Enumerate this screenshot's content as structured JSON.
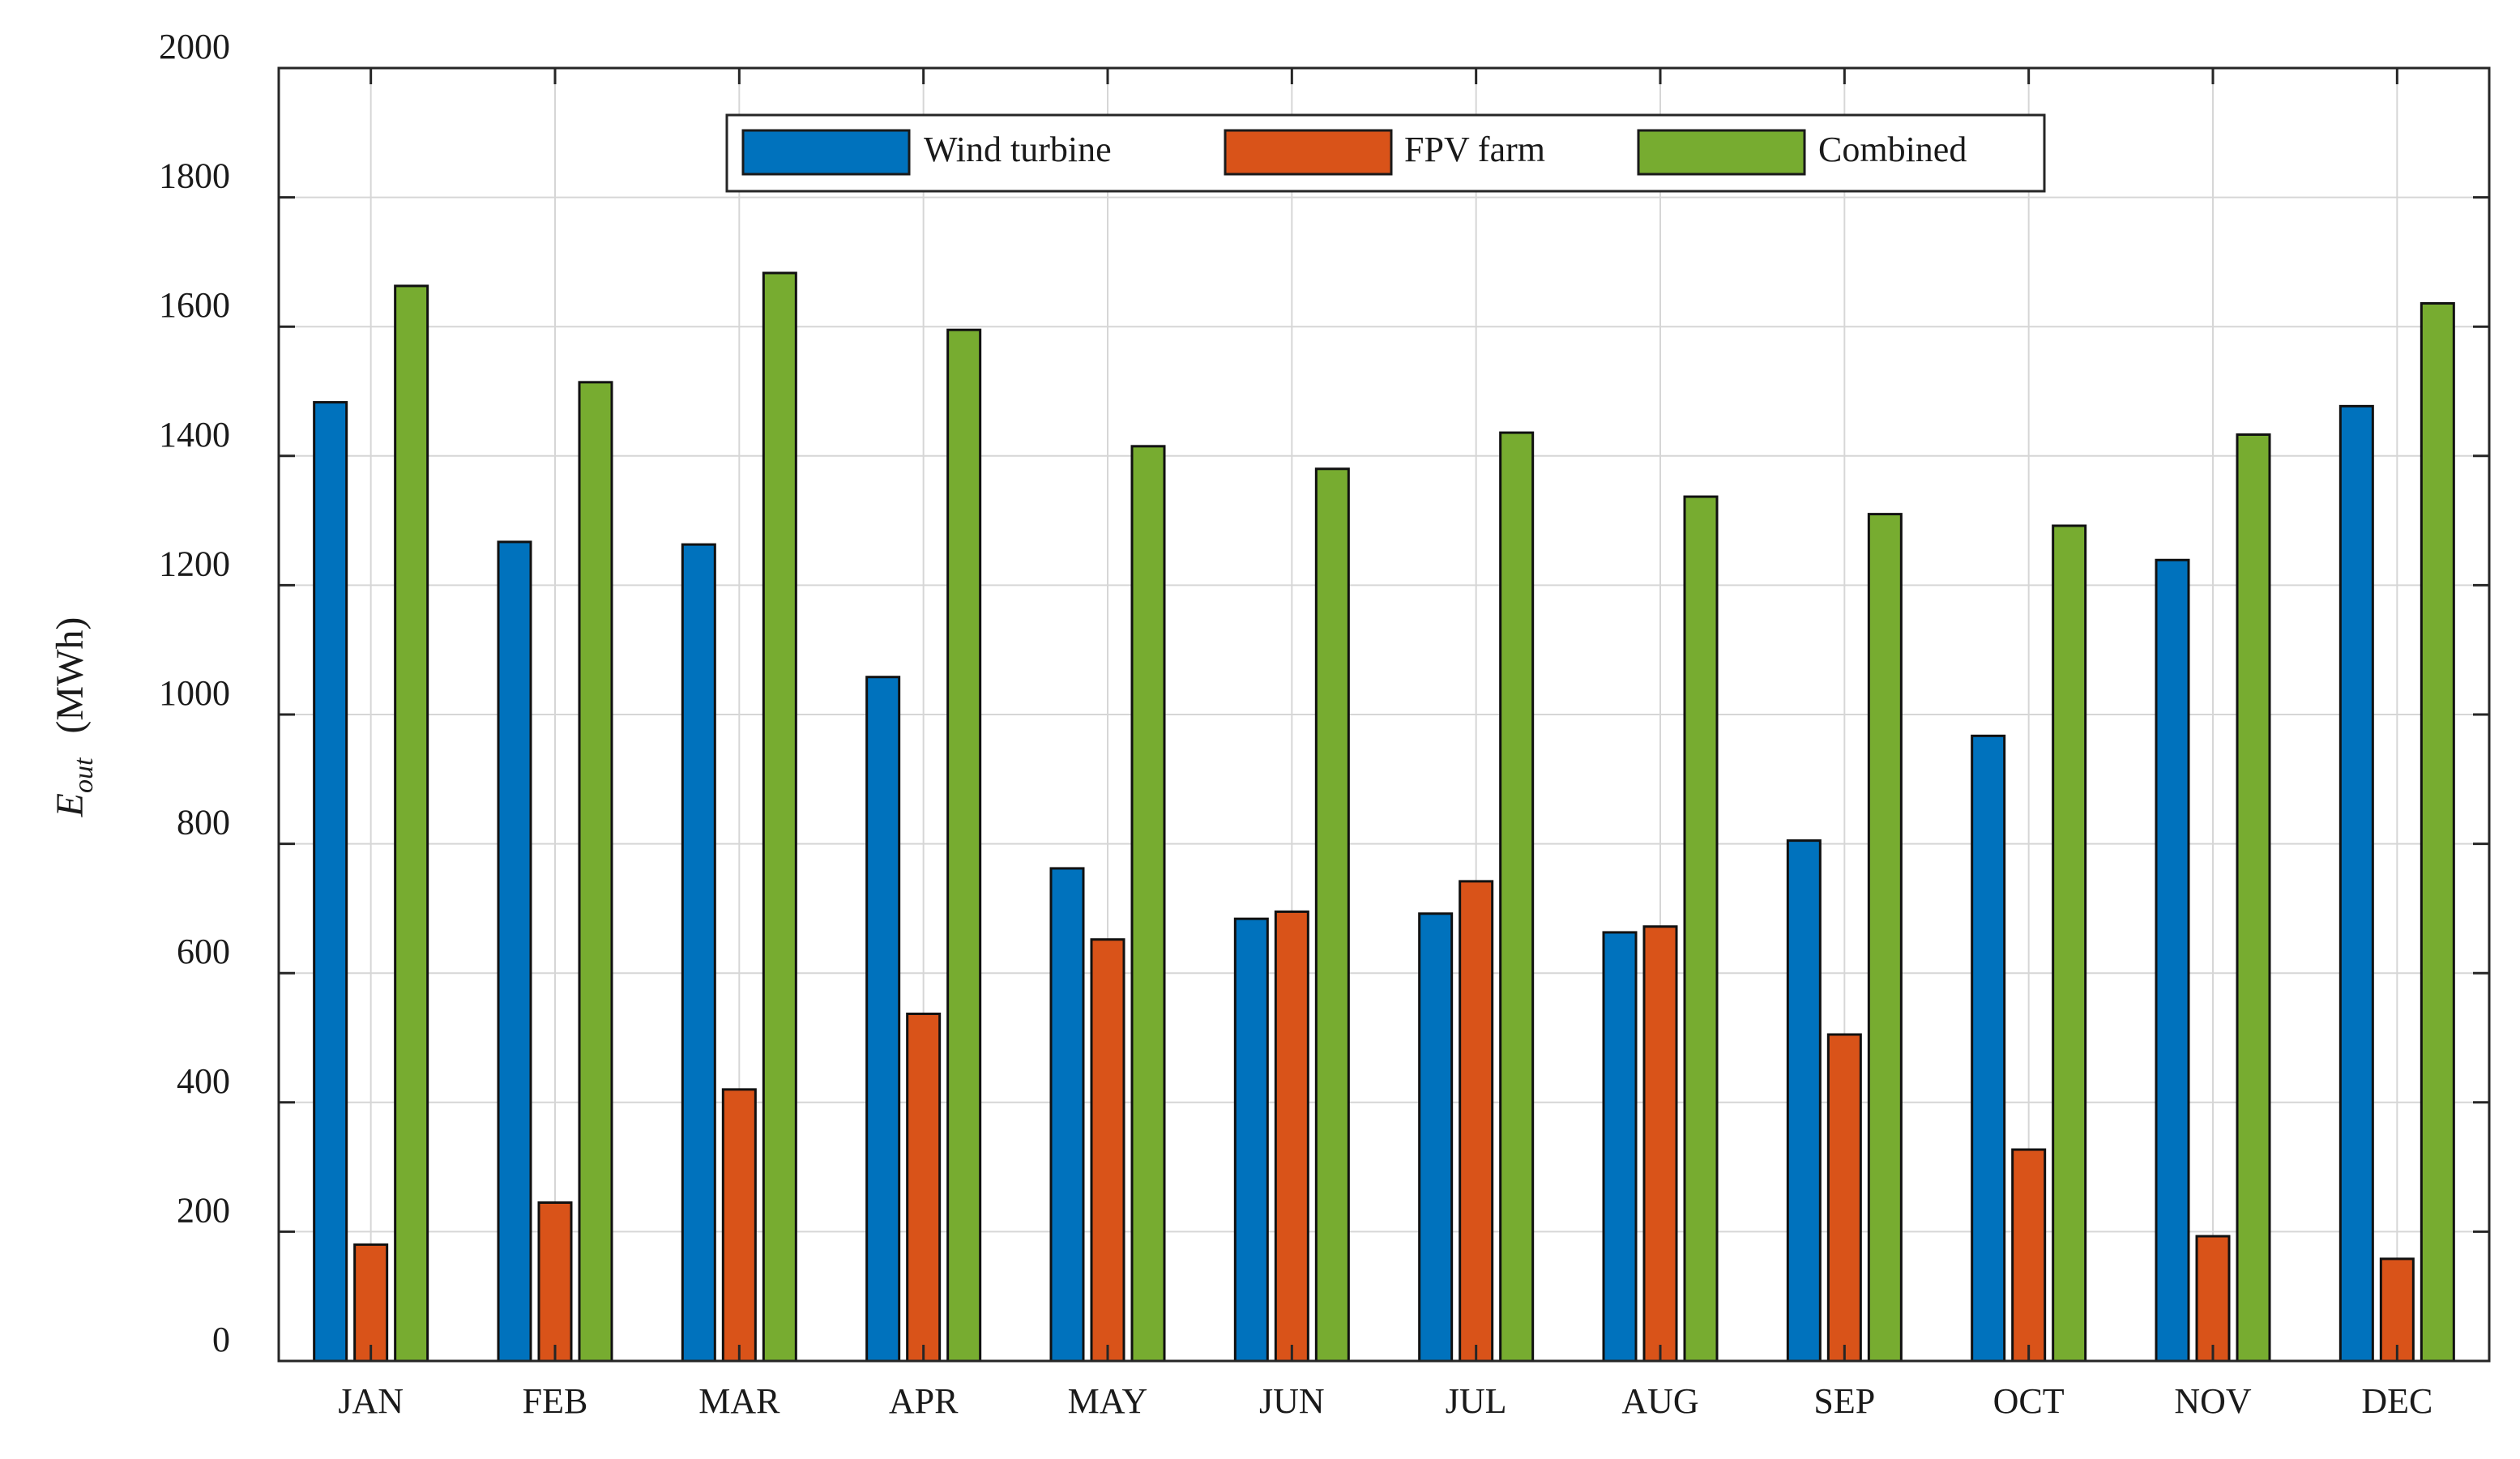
{
  "chart_data": {
    "type": "bar",
    "title": "",
    "xlabel": "",
    "ylabel_symbol": "E",
    "ylabel_subscript": "out",
    "ylabel_unit": "(MWh)",
    "ylim": [
      0,
      2000
    ],
    "yticks": [
      0,
      200,
      400,
      600,
      800,
      1000,
      1200,
      1400,
      1600,
      1800,
      2000
    ],
    "ytick_labels": [
      "0",
      "200",
      "400",
      "600",
      "800",
      "1000",
      "1200",
      "1400",
      "1600",
      "1800",
      "2000"
    ],
    "grid": true,
    "legend_position": "top-center",
    "categories": [
      "JAN",
      "FEB",
      "MAR",
      "APR",
      "MAY",
      "JUN",
      "JUL",
      "AUG",
      "SEP",
      "OCT",
      "NOV",
      "DEC"
    ],
    "series": [
      {
        "name": "Wind turbine",
        "color": "#0072BD",
        "values": [
          1483,
          1267,
          1263,
          1058,
          762,
          684,
          692,
          663,
          805,
          967,
          1239,
          1477
        ]
      },
      {
        "name": "FPV farm",
        "color": "#D95319",
        "values": [
          180,
          245,
          420,
          537,
          652,
          695,
          742,
          672,
          505,
          327,
          193,
          158
        ]
      },
      {
        "name": "Combined",
        "color": "#77AC30",
        "values": [
          1663,
          1514,
          1683,
          1595,
          1415,
          1380,
          1436,
          1337,
          1310,
          1292,
          1433,
          1636
        ]
      }
    ]
  }
}
